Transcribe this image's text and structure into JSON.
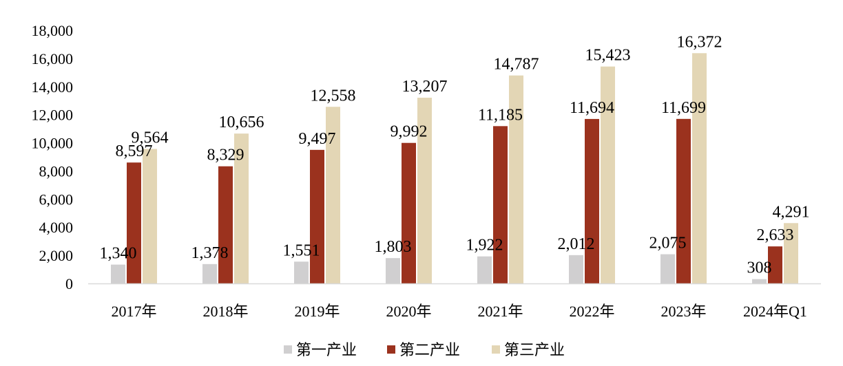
{
  "chart_data": {
    "type": "bar",
    "title": "",
    "xlabel": "",
    "ylabel": "",
    "categories": [
      "2017年",
      "2018年",
      "2019年",
      "2020年",
      "2021年",
      "2022年",
      "2023年",
      "2024年Q1"
    ],
    "ylim": [
      0,
      18000
    ],
    "yticks": [
      "0",
      "2,000",
      "4,000",
      "6,000",
      "8,000",
      "10,000",
      "12,000",
      "14,000",
      "16,000",
      "18,000"
    ],
    "grid": false,
    "legend_position": "bottom",
    "series": [
      {
        "name": "第一产业",
        "color": "#d0cfd0",
        "values": [
          1340,
          1378,
          1551,
          1803,
          1922,
          2012,
          2075,
          308
        ],
        "labels": [
          "1,340",
          "1,378",
          "1,551",
          "1,803",
          "1,922",
          "2,012",
          "2,075",
          "308"
        ]
      },
      {
        "name": "第二产业",
        "color": "#9b321e",
        "values": [
          8597,
          8329,
          9497,
          9992,
          11185,
          11694,
          11699,
          2633
        ],
        "labels": [
          "8,597",
          "8,329",
          "9,497",
          "9,992",
          "11,185",
          "11,694",
          "11,699",
          "2,633"
        ]
      },
      {
        "name": "第三产业",
        "color": "#e3d6b5",
        "values": [
          9564,
          10656,
          12558,
          13207,
          14787,
          15423,
          16372,
          4291
        ],
        "labels": [
          "9,564",
          "10,656",
          "12,558",
          "13,207",
          "14,787",
          "15,423",
          "16,372",
          "4,291"
        ]
      }
    ]
  }
}
